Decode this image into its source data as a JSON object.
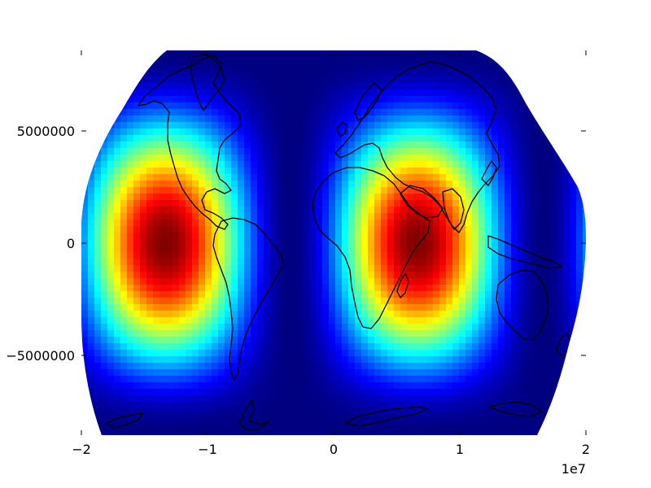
{
  "chart_data": {
    "type": "heatmap",
    "title": "",
    "xlabel": "",
    "ylabel": "",
    "xlim": [
      -20000000,
      20000000
    ],
    "ylim": [
      -8700000,
      8700000
    ],
    "x_offset_label": "1e7",
    "x_ticks": [
      {
        "value": -20000000,
        "label": "−2"
      },
      {
        "value": -10000000,
        "label": "−1"
      },
      {
        "value": 0,
        "label": "0"
      },
      {
        "value": 10000000,
        "label": "1"
      },
      {
        "value": 20000000,
        "label": "2"
      }
    ],
    "y_ticks": [
      {
        "value": 5000000,
        "label": "5000000"
      },
      {
        "value": 0,
        "label": "0"
      },
      {
        "value": -5000000,
        "label": "−5000000"
      }
    ],
    "colormap": "jet",
    "field_maxima_centers_lon": [
      -120,
      60
    ],
    "grid": false,
    "frame": false
  },
  "colors": {
    "coastline": "#000000",
    "background": "#ffffff"
  }
}
